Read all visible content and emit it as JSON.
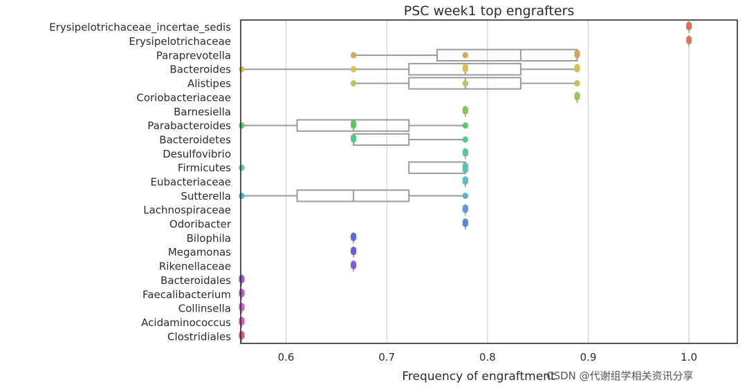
{
  "watermark": "CSDN @代谢组学相关资讯分享",
  "chart_data": {
    "type": "box",
    "orientation": "horizontal",
    "title": "PSC week1 top engrafters",
    "xlabel": "Frequency of engraftment",
    "ylabel": "",
    "xlim": [
      0.555,
      1.048
    ],
    "xticks": [
      0.6,
      0.7,
      0.8,
      0.9,
      1.0
    ],
    "xtick_labels": [
      "0.6",
      "0.7",
      "0.8",
      "0.9",
      "1.0"
    ],
    "grid": "vertical",
    "colors": {
      "box_edge": "#9a9a9a",
      "grid": "#cfcfcf",
      "axes": "#2b2b2b"
    },
    "categories": [
      "Erysipelotrichaceae_incertae_sedis",
      "Erysipelotrichaceae",
      "Paraprevotella",
      "Bacteroides",
      "Alistipes",
      "Coriobacteriaceae",
      "Barnesiella",
      "Parabacteroides",
      "Bacteroidetes",
      "Desulfovibrio",
      "Firmicutes",
      "Eubacteriaceae",
      "Sutterella",
      "Lachnospiraceae",
      "Odoribacter",
      "Bilophila",
      "Megamonas",
      "Rikenellaceae",
      "Bacteroidales",
      "Faecalibacterium",
      "Collinsella",
      "Acidaminococcus",
      "Clostridiales"
    ],
    "boxes": [
      {
        "category": "Erysipelotrichaceae_incertae_sedis",
        "whislo": 1.0,
        "q1": 1.0,
        "med": 1.0,
        "q3": 1.0,
        "whishi": 1.0,
        "points": [
          1.0,
          1.0
        ],
        "color": "#d9705a"
      },
      {
        "category": "Erysipelotrichaceae",
        "whislo": 1.0,
        "q1": 1.0,
        "med": 1.0,
        "q3": 1.0,
        "whishi": 1.0,
        "points": [
          1.0,
          1.0
        ],
        "color": "#d9785a"
      },
      {
        "category": "Paraprevotella",
        "whislo": 0.667,
        "q1": 0.75,
        "med": 0.833,
        "q3": 0.889,
        "whishi": 0.889,
        "points": [
          0.667,
          0.778,
          0.889,
          0.889
        ],
        "color": "#d9a05a"
      },
      {
        "category": "Bacteroides",
        "whislo": 0.556,
        "q1": 0.722,
        "med": 0.778,
        "q3": 0.833,
        "whishi": 0.889,
        "points": [
          0.556,
          0.667,
          0.778,
          0.778,
          0.889,
          0.889
        ],
        "color": "#d9bd5a"
      },
      {
        "category": "Alistipes",
        "whislo": 0.667,
        "q1": 0.722,
        "med": 0.778,
        "q3": 0.833,
        "whishi": 0.889,
        "points": [
          0.667,
          0.778,
          0.889
        ],
        "color": "#b5c45a"
      },
      {
        "category": "Coriobacteriaceae",
        "whislo": 0.889,
        "q1": 0.889,
        "med": 0.889,
        "q3": 0.889,
        "whishi": 0.889,
        "points": [
          0.889,
          0.889
        ],
        "color": "#95c45a"
      },
      {
        "category": "Barnesiella",
        "whislo": 0.778,
        "q1": 0.778,
        "med": 0.778,
        "q3": 0.778,
        "whishi": 0.778,
        "points": [
          0.778,
          0.778
        ],
        "color": "#7cc45a"
      },
      {
        "category": "Parabacteroides",
        "whislo": 0.556,
        "q1": 0.611,
        "med": 0.667,
        "q3": 0.722,
        "whishi": 0.778,
        "points": [
          0.556,
          0.667,
          0.667,
          0.778
        ],
        "color": "#5ac46c"
      },
      {
        "category": "Bacteroidetes",
        "whislo": 0.667,
        "q1": 0.667,
        "med": 0.667,
        "q3": 0.722,
        "whishi": 0.778,
        "points": [
          0.667,
          0.667,
          0.778
        ],
        "color": "#5ac489"
      },
      {
        "category": "Desulfovibrio",
        "whislo": 0.778,
        "q1": 0.778,
        "med": 0.778,
        "q3": 0.778,
        "whishi": 0.778,
        "points": [
          0.778,
          0.778
        ],
        "color": "#5ac4a6"
      },
      {
        "category": "Firmicutes",
        "whislo": 0.722,
        "q1": 0.722,
        "med": 0.778,
        "q3": 0.778,
        "whishi": 0.778,
        "points": [
          0.556,
          0.778,
          0.778,
          0.778
        ],
        "color": "#5ac4b6"
      },
      {
        "category": "Eubacteriaceae",
        "whislo": 0.778,
        "q1": 0.778,
        "med": 0.778,
        "q3": 0.778,
        "whishi": 0.778,
        "points": [
          0.778,
          0.778
        ],
        "color": "#5abcc4"
      },
      {
        "category": "Sutterella",
        "whislo": 0.556,
        "q1": 0.611,
        "med": 0.667,
        "q3": 0.722,
        "whishi": 0.778,
        "points": [
          0.556,
          0.778
        ],
        "color": "#5aacd4"
      },
      {
        "category": "Lachnospiraceae",
        "whislo": 0.778,
        "q1": 0.778,
        "med": 0.778,
        "q3": 0.778,
        "whishi": 0.778,
        "points": [
          0.778,
          0.778
        ],
        "color": "#5a9ad4"
      },
      {
        "category": "Odoribacter",
        "whislo": 0.778,
        "q1": 0.778,
        "med": 0.778,
        "q3": 0.778,
        "whishi": 0.778,
        "points": [
          0.778,
          0.778
        ],
        "color": "#5a84d4"
      },
      {
        "category": "Bilophila",
        "whislo": 0.667,
        "q1": 0.667,
        "med": 0.667,
        "q3": 0.667,
        "whishi": 0.667,
        "points": [
          0.667,
          0.667
        ],
        "color": "#5a6cd4"
      },
      {
        "category": "Megamonas",
        "whislo": 0.667,
        "q1": 0.667,
        "med": 0.667,
        "q3": 0.667,
        "whishi": 0.667,
        "points": [
          0.667,
          0.667
        ],
        "color": "#6a5ad4"
      },
      {
        "category": "Rikenellaceae",
        "whislo": 0.667,
        "q1": 0.667,
        "med": 0.667,
        "q3": 0.667,
        "whishi": 0.667,
        "points": [
          0.667,
          0.667
        ],
        "color": "#7e5ad4"
      },
      {
        "category": "Bacteroidales",
        "whislo": 0.556,
        "q1": 0.556,
        "med": 0.556,
        "q3": 0.556,
        "whishi": 0.556,
        "points": [
          0.556,
          0.556
        ],
        "color": "#9a5ad4"
      },
      {
        "category": "Faecalibacterium",
        "whislo": 0.556,
        "q1": 0.556,
        "med": 0.556,
        "q3": 0.556,
        "whishi": 0.556,
        "points": [
          0.556,
          0.556
        ],
        "color": "#b85ad4"
      },
      {
        "category": "Collinsella",
        "whislo": 0.556,
        "q1": 0.556,
        "med": 0.556,
        "q3": 0.556,
        "whishi": 0.556,
        "points": [
          0.556,
          0.556
        ],
        "color": "#d45ac4"
      },
      {
        "category": "Acidaminococcus",
        "whislo": 0.556,
        "q1": 0.556,
        "med": 0.556,
        "q3": 0.556,
        "whishi": 0.556,
        "points": [
          0.556,
          0.556
        ],
        "color": "#d45aa6"
      },
      {
        "category": "Clostridiales",
        "whislo": 0.556,
        "q1": 0.556,
        "med": 0.556,
        "q3": 0.556,
        "whishi": 0.556,
        "points": [
          0.556,
          0.556
        ],
        "color": "#d45a84"
      }
    ]
  }
}
